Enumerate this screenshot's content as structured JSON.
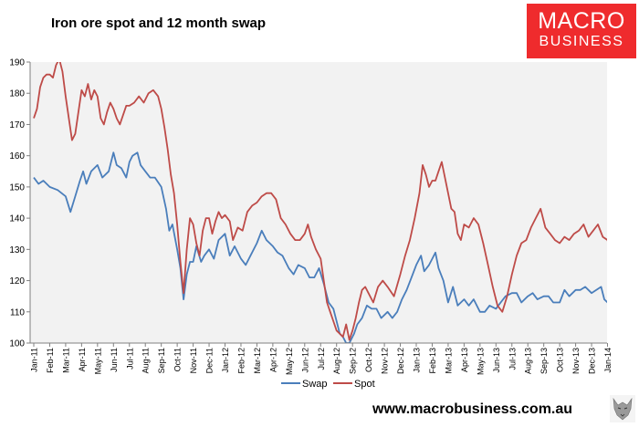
{
  "chart_data": {
    "type": "line",
    "title": "Iron ore spot and 12 month swap",
    "xlabel": "",
    "ylabel": "",
    "ylim": [
      100,
      190
    ],
    "yticks": [
      100,
      110,
      120,
      130,
      140,
      150,
      160,
      170,
      180,
      190
    ],
    "grid": false,
    "legend": "bottom-center",
    "categories": [
      "Jan-11",
      "Feb-11",
      "Mar-11",
      "Apr-11",
      "May-11",
      "Jun-11",
      "Jul-11",
      "Aug-11",
      "Sep-11",
      "Oct-11",
      "Nov-11",
      "Dec-11",
      "Jan-12",
      "Feb-12",
      "Mar-12",
      "Apr-12",
      "May-12",
      "Jun-12",
      "Jul-12",
      "Aug-12",
      "Sep-12",
      "Oct-12",
      "Nov-12",
      "Dec-12",
      "Jan-13",
      "Feb-13",
      "Mar-13",
      "Apr-13",
      "May-13",
      "Jun-13",
      "Jul-13",
      "Aug-13",
      "Sep-13",
      "Oct-13",
      "Nov-13",
      "Dec-13",
      "Jan-14"
    ],
    "series": [
      {
        "name": "Swap",
        "color": "#4a7ebb",
        "points": [
          [
            0,
            153
          ],
          [
            0.3,
            151
          ],
          [
            0.6,
            152
          ],
          [
            1.0,
            150
          ],
          [
            1.5,
            149
          ],
          [
            2.0,
            147
          ],
          [
            2.3,
            142
          ],
          [
            2.6,
            147
          ],
          [
            2.9,
            152
          ],
          [
            3.1,
            155
          ],
          [
            3.3,
            151
          ],
          [
            3.6,
            155
          ],
          [
            4.0,
            157
          ],
          [
            4.3,
            153
          ],
          [
            4.7,
            155
          ],
          [
            5.0,
            161
          ],
          [
            5.2,
            157
          ],
          [
            5.5,
            156
          ],
          [
            5.8,
            153
          ],
          [
            6.0,
            158
          ],
          [
            6.2,
            160
          ],
          [
            6.5,
            161
          ],
          [
            6.7,
            157
          ],
          [
            7.0,
            155
          ],
          [
            7.3,
            153
          ],
          [
            7.6,
            153
          ],
          [
            8.0,
            150
          ],
          [
            8.3,
            143
          ],
          [
            8.5,
            136
          ],
          [
            8.7,
            138
          ],
          [
            9.0,
            130
          ],
          [
            9.2,
            124
          ],
          [
            9.4,
            114
          ],
          [
            9.6,
            122
          ],
          [
            9.8,
            126
          ],
          [
            10.0,
            126
          ],
          [
            10.2,
            131
          ],
          [
            10.5,
            126
          ],
          [
            10.7,
            128
          ],
          [
            11.0,
            130
          ],
          [
            11.3,
            127
          ],
          [
            11.6,
            133
          ],
          [
            12.0,
            135
          ],
          [
            12.3,
            128
          ],
          [
            12.6,
            131
          ],
          [
            13.0,
            127
          ],
          [
            13.3,
            125
          ],
          [
            13.6,
            128
          ],
          [
            14.0,
            132
          ],
          [
            14.3,
            136
          ],
          [
            14.6,
            133
          ],
          [
            15.0,
            131
          ],
          [
            15.3,
            129
          ],
          [
            15.6,
            128
          ],
          [
            16.0,
            124
          ],
          [
            16.3,
            122
          ],
          [
            16.6,
            125
          ],
          [
            17.0,
            124
          ],
          [
            17.3,
            121
          ],
          [
            17.6,
            121
          ],
          [
            17.9,
            124
          ],
          [
            18.2,
            119
          ],
          [
            18.5,
            113
          ],
          [
            18.8,
            111
          ],
          [
            19.0,
            107
          ],
          [
            19.2,
            103
          ],
          [
            19.4,
            102
          ],
          [
            19.6,
            100
          ],
          [
            19.8,
            100
          ],
          [
            20.1,
            103
          ],
          [
            20.3,
            106
          ],
          [
            20.6,
            108
          ],
          [
            20.9,
            112
          ],
          [
            21.2,
            111
          ],
          [
            21.5,
            111
          ],
          [
            21.8,
            108
          ],
          [
            22.2,
            110
          ],
          [
            22.5,
            108
          ],
          [
            22.8,
            110
          ],
          [
            23.1,
            114
          ],
          [
            23.4,
            117
          ],
          [
            23.7,
            121
          ],
          [
            24.0,
            125
          ],
          [
            24.3,
            128
          ],
          [
            24.5,
            123
          ],
          [
            24.8,
            125
          ],
          [
            25.0,
            127
          ],
          [
            25.2,
            129
          ],
          [
            25.4,
            124
          ],
          [
            25.7,
            120
          ],
          [
            26.0,
            113
          ],
          [
            26.3,
            118
          ],
          [
            26.6,
            112
          ],
          [
            27.0,
            114
          ],
          [
            27.3,
            112
          ],
          [
            27.6,
            114
          ],
          [
            28.0,
            110
          ],
          [
            28.3,
            110
          ],
          [
            28.6,
            112
          ],
          [
            29.0,
            111
          ],
          [
            29.3,
            113
          ],
          [
            29.6,
            115
          ],
          [
            30.0,
            116
          ],
          [
            30.3,
            116
          ],
          [
            30.6,
            113
          ],
          [
            31.0,
            115
          ],
          [
            31.3,
            116
          ],
          [
            31.6,
            114
          ],
          [
            32.0,
            115
          ],
          [
            32.3,
            115
          ],
          [
            32.6,
            113
          ],
          [
            33.0,
            113
          ],
          [
            33.3,
            117
          ],
          [
            33.6,
            115
          ],
          [
            34.0,
            117
          ],
          [
            34.3,
            117
          ],
          [
            34.6,
            118
          ],
          [
            35.0,
            116
          ],
          [
            35.3,
            117
          ],
          [
            35.6,
            118
          ],
          [
            35.8,
            114
          ],
          [
            36.0,
            113
          ],
          [
            36.2,
            113
          ]
        ]
      },
      {
        "name": "Spot",
        "color": "#be4b48",
        "points": [
          [
            0,
            172
          ],
          [
            0.2,
            175
          ],
          [
            0.4,
            182
          ],
          [
            0.6,
            185
          ],
          [
            0.8,
            186
          ],
          [
            1.0,
            186
          ],
          [
            1.2,
            185
          ],
          [
            1.4,
            189
          ],
          [
            1.6,
            191
          ],
          [
            1.8,
            187
          ],
          [
            2.0,
            179
          ],
          [
            2.2,
            172
          ],
          [
            2.4,
            165
          ],
          [
            2.6,
            167
          ],
          [
            2.8,
            174
          ],
          [
            3.0,
            181
          ],
          [
            3.2,
            179
          ],
          [
            3.4,
            183
          ],
          [
            3.6,
            178
          ],
          [
            3.8,
            181
          ],
          [
            4.0,
            179
          ],
          [
            4.2,
            172
          ],
          [
            4.4,
            170
          ],
          [
            4.6,
            174
          ],
          [
            4.8,
            177
          ],
          [
            5.0,
            175
          ],
          [
            5.2,
            172
          ],
          [
            5.4,
            170
          ],
          [
            5.6,
            173
          ],
          [
            5.8,
            176
          ],
          [
            6.0,
            176
          ],
          [
            6.3,
            177
          ],
          [
            6.6,
            179
          ],
          [
            6.9,
            177
          ],
          [
            7.2,
            180
          ],
          [
            7.5,
            181
          ],
          [
            7.8,
            179
          ],
          [
            8.0,
            175
          ],
          [
            8.2,
            169
          ],
          [
            8.4,
            162
          ],
          [
            8.6,
            154
          ],
          [
            8.8,
            148
          ],
          [
            9.0,
            138
          ],
          [
            9.2,
            126
          ],
          [
            9.4,
            116
          ],
          [
            9.6,
            130
          ],
          [
            9.8,
            140
          ],
          [
            10.0,
            138
          ],
          [
            10.2,
            132
          ],
          [
            10.4,
            128
          ],
          [
            10.6,
            136
          ],
          [
            10.8,
            140
          ],
          [
            11.0,
            140
          ],
          [
            11.2,
            135
          ],
          [
            11.4,
            139
          ],
          [
            11.6,
            142
          ],
          [
            11.8,
            140
          ],
          [
            12.0,
            141
          ],
          [
            12.3,
            139
          ],
          [
            12.5,
            133
          ],
          [
            12.8,
            137
          ],
          [
            13.1,
            136
          ],
          [
            13.4,
            142
          ],
          [
            13.7,
            144
          ],
          [
            14.0,
            145
          ],
          [
            14.3,
            147
          ],
          [
            14.6,
            148
          ],
          [
            14.9,
            148
          ],
          [
            15.2,
            146
          ],
          [
            15.5,
            140
          ],
          [
            15.8,
            138
          ],
          [
            16.1,
            135
          ],
          [
            16.4,
            133
          ],
          [
            16.7,
            133
          ],
          [
            17.0,
            135
          ],
          [
            17.2,
            138
          ],
          [
            17.4,
            134
          ],
          [
            17.7,
            130
          ],
          [
            18.0,
            127
          ],
          [
            18.2,
            120
          ],
          [
            18.4,
            113
          ],
          [
            18.6,
            110
          ],
          [
            18.8,
            107
          ],
          [
            19.0,
            104
          ],
          [
            19.2,
            103
          ],
          [
            19.4,
            102
          ],
          [
            19.6,
            106
          ],
          [
            19.8,
            101
          ],
          [
            20.0,
            104
          ],
          [
            20.2,
            108
          ],
          [
            20.4,
            113
          ],
          [
            20.6,
            117
          ],
          [
            20.8,
            118
          ],
          [
            21.0,
            116
          ],
          [
            21.3,
            113
          ],
          [
            21.6,
            118
          ],
          [
            21.9,
            120
          ],
          [
            22.2,
            118
          ],
          [
            22.6,
            115
          ],
          [
            23.0,
            122
          ],
          [
            23.3,
            128
          ],
          [
            23.6,
            133
          ],
          [
            23.9,
            140
          ],
          [
            24.2,
            148
          ],
          [
            24.4,
            157
          ],
          [
            24.6,
            154
          ],
          [
            24.8,
            150
          ],
          [
            25.0,
            152
          ],
          [
            25.2,
            152
          ],
          [
            25.4,
            155
          ],
          [
            25.6,
            158
          ],
          [
            25.8,
            153
          ],
          [
            26.0,
            148
          ],
          [
            26.2,
            143
          ],
          [
            26.4,
            142
          ],
          [
            26.6,
            135
          ],
          [
            26.8,
            133
          ],
          [
            27.0,
            138
          ],
          [
            27.3,
            137
          ],
          [
            27.6,
            140
          ],
          [
            27.9,
            138
          ],
          [
            28.2,
            132
          ],
          [
            28.5,
            125
          ],
          [
            28.8,
            118
          ],
          [
            29.1,
            112
          ],
          [
            29.4,
            110
          ],
          [
            29.7,
            115
          ],
          [
            30.0,
            122
          ],
          [
            30.3,
            128
          ],
          [
            30.6,
            132
          ],
          [
            30.9,
            133
          ],
          [
            31.2,
            137
          ],
          [
            31.5,
            140
          ],
          [
            31.8,
            143
          ],
          [
            32.1,
            137
          ],
          [
            32.4,
            135
          ],
          [
            32.7,
            133
          ],
          [
            33.0,
            132
          ],
          [
            33.3,
            134
          ],
          [
            33.6,
            133
          ],
          [
            33.9,
            135
          ],
          [
            34.2,
            136
          ],
          [
            34.5,
            138
          ],
          [
            34.8,
            134
          ],
          [
            35.1,
            136
          ],
          [
            35.4,
            138
          ],
          [
            35.7,
            134
          ],
          [
            36.0,
            133
          ],
          [
            36.1,
            131
          ],
          [
            36.2,
            128
          ]
        ]
      }
    ],
    "website": "www.macrobusiness.com.au",
    "logo_line1": "MACRO",
    "logo_line2": "BUSINESS",
    "plot_background": "#f2f2f2"
  }
}
